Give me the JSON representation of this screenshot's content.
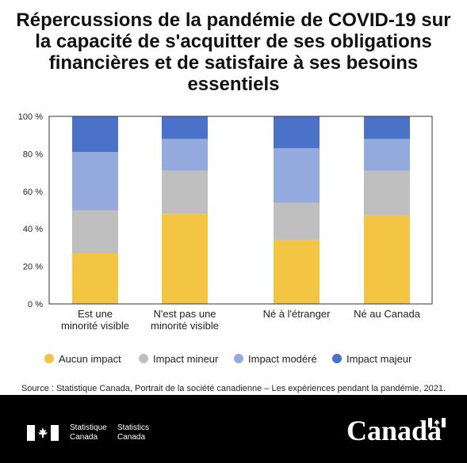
{
  "title": "Répercussions de la pandémie de COVID-19 sur la capacité de s'acquitter de ses obligations financières et de satisfaire à ses besoins essentiels",
  "source": "Source : Statistique Canada, Portrait de la société canadienne – Les expériences pendant la pandémie, 2021.",
  "footer": {
    "agency_fr": "Statistique\nCanada",
    "agency_en": "Statistics\nCanada",
    "wordmark": "Canada"
  },
  "chart_data": {
    "type": "bar",
    "stacked": true,
    "categories": [
      [
        "Est une",
        "minorité visible"
      ],
      [
        "N'est pas une",
        "minorité visible"
      ],
      [
        "Né à l'étranger"
      ],
      [
        "Né au Canada"
      ]
    ],
    "yticks": [
      "0 %",
      "20 %",
      "40 %",
      "60 %",
      "80 %",
      "100 %"
    ],
    "ylim": [
      0,
      100
    ],
    "grid": false,
    "legend_position": "bottom",
    "series": [
      {
        "name": "Aucun impact",
        "color": "#F4C542",
        "values": [
          27,
          48,
          34,
          47
        ]
      },
      {
        "name": "Impact mineur",
        "color": "#BFBFBF",
        "values": [
          23,
          23,
          20,
          24
        ]
      },
      {
        "name": "Impact modéré",
        "color": "#94A9DE",
        "values": [
          31,
          17,
          29,
          17
        ]
      },
      {
        "name": "Impact majeur",
        "color": "#4A72C8",
        "values": [
          19,
          12,
          17,
          12
        ]
      }
    ]
  }
}
